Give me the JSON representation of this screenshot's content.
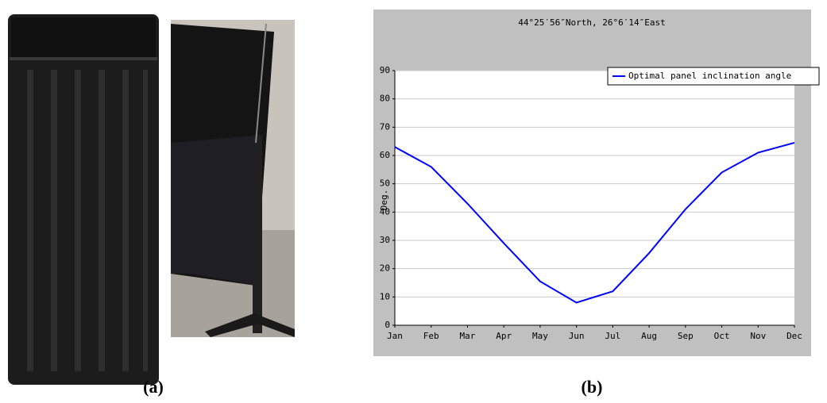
{
  "captions": [
    "(a)",
    "(b)"
  ],
  "chart_data": {
    "type": "line",
    "title": "44°25′56″North, 26°6′14″East",
    "y_label": "Deg.",
    "categories": [
      "Jan",
      "Feb",
      "Mar",
      "Apr",
      "May",
      "Jun",
      "Jul",
      "Aug",
      "Sep",
      "Oct",
      "Nov",
      "Dec"
    ],
    "series": [
      {
        "name": "Optimal panel inclination angle",
        "color": "#0000ff",
        "values": [
          63,
          56,
          43,
          29,
          15.5,
          8,
          12,
          25.5,
          41,
          54,
          61,
          64.5
        ]
      }
    ],
    "ylim": [
      0,
      90
    ],
    "yticks": [
      0,
      10,
      20,
      30,
      40,
      50,
      60,
      70,
      80,
      90
    ],
    "grid": true,
    "legend": "top-right"
  }
}
